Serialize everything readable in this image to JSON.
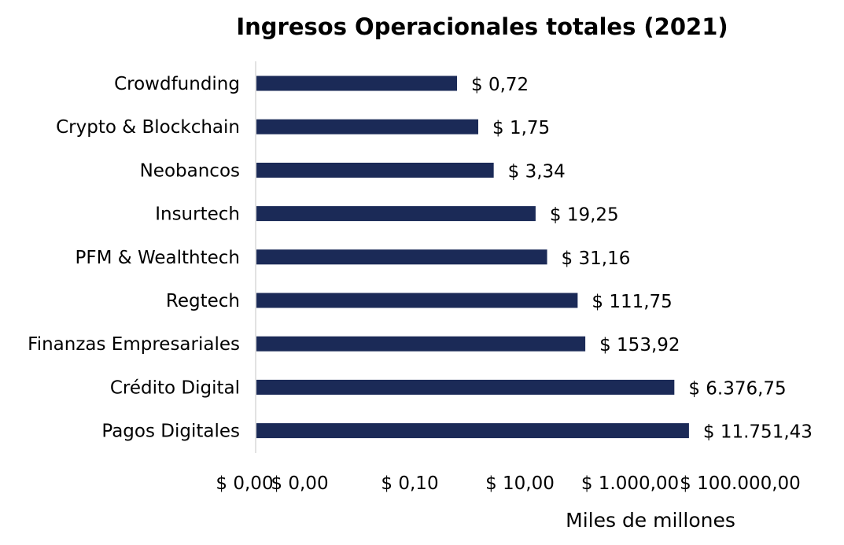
{
  "chart_data": {
    "type": "bar",
    "orientation": "horizontal",
    "title": "Ingresos Operacionales totales (2021)",
    "xlabel": "Miles de millones",
    "ylabel": "",
    "x_scale": "log",
    "categories": [
      "Crowdfunding",
      "Crypto & Blockchain",
      "Neobancos",
      "Insurtech",
      "PFM & Wealthtech",
      "Regtech",
      "Finanzas Empresariales",
      "Crédito Digital",
      "Pagos Digitales"
    ],
    "values": [
      0.72,
      1.75,
      3.34,
      19.25,
      31.16,
      111.75,
      153.92,
      6376.75,
      11751.43
    ],
    "value_labels": [
      "$ 0,72",
      "$ 1,75",
      "$ 3,34",
      "$ 19,25",
      "$ 31,16",
      "$ 111,75",
      "$ 153,92",
      "$ 6.376,75",
      "$ 11.751,43"
    ],
    "x_ticks": [
      0.0001,
      0.001,
      0.1,
      10,
      1000,
      100000
    ],
    "x_tick_labels": [
      "$ 0,00",
      "$ 0,00",
      "$ 0,10",
      "$ 10,00",
      "$ 1.000,00",
      "$ 100.000,00"
    ],
    "bar_color": "#1b2a57",
    "grid": false,
    "legend": "none"
  }
}
